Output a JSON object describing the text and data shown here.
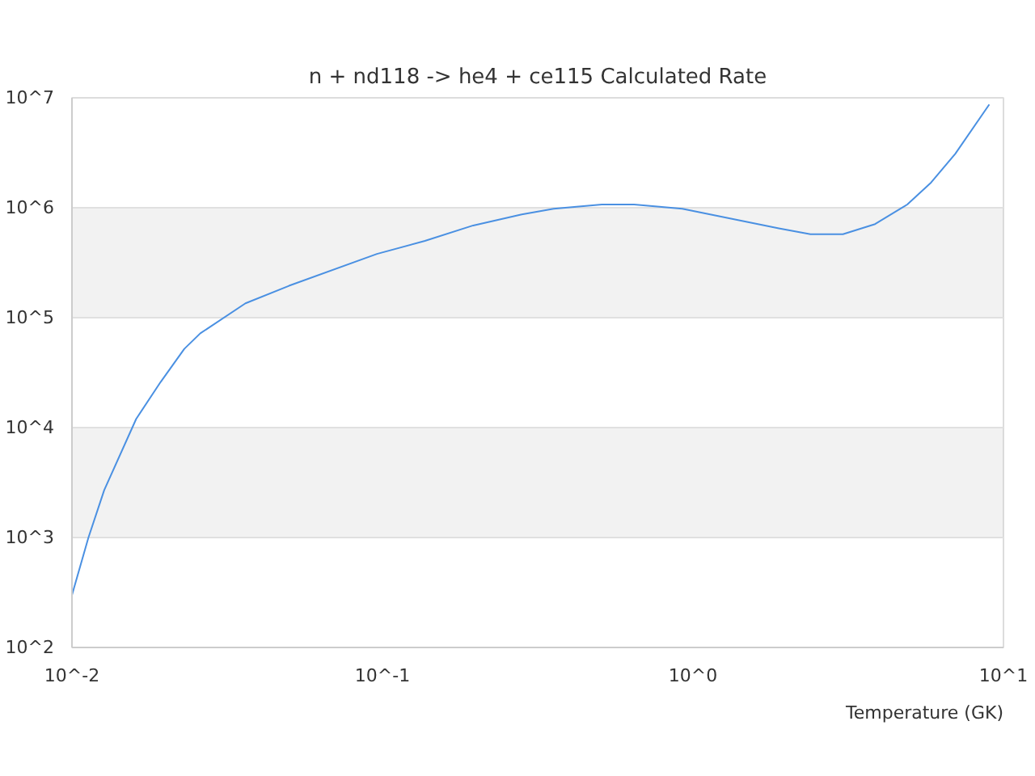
{
  "chart_data": {
    "type": "line",
    "title": "n + nd118 -> he4 + ce115 Calculated Rate",
    "xlabel": "Temperature (GK)",
    "log": "xy",
    "grid": "y",
    "marker": "none",
    "line_style": "solid",
    "xlim": [
      0.01,
      10
    ],
    "ylim": [
      100,
      10000000
    ],
    "xticks": [
      {
        "value": 0.01,
        "label": "10^-2"
      },
      {
        "value": 0.1,
        "label": "10^-1"
      },
      {
        "value": 1,
        "label": "10^0"
      },
      {
        "value": 10,
        "label": "10^1"
      }
    ],
    "yticks": [
      {
        "value": 100,
        "label": "10^2"
      },
      {
        "value": 1000,
        "label": "10^3"
      },
      {
        "value": 10000,
        "label": "10^4"
      },
      {
        "value": 100000,
        "label": "10^5"
      },
      {
        "value": 1000000,
        "label": "10^6"
      },
      {
        "value": 10000000,
        "label": "10^7"
      }
    ],
    "series": [
      {
        "color": "#4a90e2",
        "x": [
          0.01,
          0.0113,
          0.0127,
          0.0161,
          0.0193,
          0.023,
          0.0259,
          0.0362,
          0.05,
          0.096,
          0.137,
          0.196,
          0.281,
          0.356,
          0.509,
          0.646,
          0.924,
          1.89,
          2.39,
          3.04,
          3.86,
          4.9,
          5.85,
          7.0,
          9.0
        ],
        "values": [
          300,
          1000,
          2700,
          12000,
          26000,
          52000,
          72000,
          135000,
          195000,
          380000,
          500000,
          690000,
          870000,
          980000,
          1070000,
          1070000,
          980000,
          650000,
          575000,
          575000,
          710000,
          1070000,
          1700000,
          3100000,
          8700000
        ]
      }
    ]
  }
}
